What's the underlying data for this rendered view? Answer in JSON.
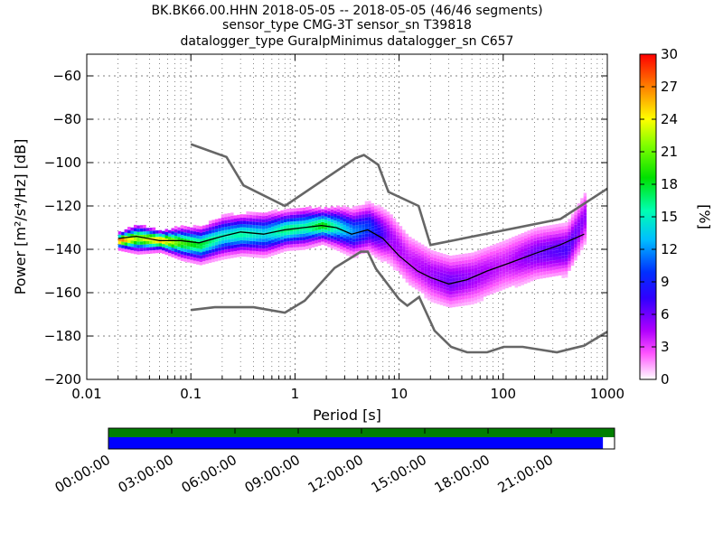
{
  "chart_data": {
    "type": "heatmap",
    "title": [
      "BK.BK66.00.HHN   2018-05-05 -- 2018-05-05  (46/46 segments)",
      "sensor_type CMG-3T sensor_sn T39818",
      "datalogger_type GuralpMinimus datalogger_sn C657"
    ],
    "xlabel": "Period [s]",
    "ylabel": "Power [m²/s⁴/Hz] [dB]",
    "x_scale": "log",
    "xlim": [
      0.01,
      1000
    ],
    "ylim": [
      -200,
      -50
    ],
    "x_ticks": [
      {
        "v": 0.01,
        "label": "0.01"
      },
      {
        "v": 0.1,
        "label": "0.1"
      },
      {
        "v": 1,
        "label": "1"
      },
      {
        "v": 10,
        "label": "10"
      },
      {
        "v": 100,
        "label": "100"
      },
      {
        "v": 1000,
        "label": "1000"
      }
    ],
    "y_ticks": [
      {
        "v": -60,
        "label": "−60"
      },
      {
        "v": -80,
        "label": "−80"
      },
      {
        "v": -100,
        "label": "−100"
      },
      {
        "v": -120,
        "label": "−120"
      },
      {
        "v": -140,
        "label": "−140"
      },
      {
        "v": -160,
        "label": "−160"
      },
      {
        "v": -180,
        "label": "−180"
      },
      {
        "v": -200,
        "label": "−200"
      }
    ],
    "colorbar": {
      "label": "[%]",
      "range": [
        0,
        30
      ],
      "ticks": [
        {
          "v": 0,
          "label": "0"
        },
        {
          "v": 3,
          "label": "3"
        },
        {
          "v": 6,
          "label": "6"
        },
        {
          "v": 9,
          "label": "9"
        },
        {
          "v": 12,
          "label": "12"
        },
        {
          "v": 15,
          "label": "15"
        },
        {
          "v": 18,
          "label": "18"
        },
        {
          "v": 21,
          "label": "21"
        },
        {
          "v": 24,
          "label": "24"
        },
        {
          "v": 27,
          "label": "27"
        },
        {
          "v": 30,
          "label": "30"
        }
      ]
    },
    "noise_models": {
      "high": [
        [
          0.1,
          -91.5
        ],
        [
          0.22,
          -97.4
        ],
        [
          0.32,
          -110.5
        ],
        [
          0.8,
          -120
        ],
        [
          3.8,
          -98
        ],
        [
          4.6,
          -96.5
        ],
        [
          6.3,
          -101
        ],
        [
          7.9,
          -113.5
        ],
        [
          15.4,
          -120
        ],
        [
          20,
          -138
        ],
        [
          354.8,
          -126
        ],
        [
          1000,
          -112
        ]
      ],
      "low": [
        [
          0.1,
          -168
        ],
        [
          0.17,
          -166.7
        ],
        [
          0.4,
          -166.7
        ],
        [
          0.8,
          -169.2
        ],
        [
          1.24,
          -163.7
        ],
        [
          2.4,
          -148.6
        ],
        [
          4.3,
          -141.1
        ],
        [
          5,
          -141.1
        ],
        [
          6,
          -149
        ],
        [
          10,
          -163
        ],
        [
          12,
          -166
        ],
        [
          15.6,
          -162
        ],
        [
          21.9,
          -177.5
        ],
        [
          31.6,
          -185
        ],
        [
          45,
          -187.5
        ],
        [
          70,
          -187.5
        ],
        [
          101,
          -185
        ],
        [
          154,
          -185
        ],
        [
          328,
          -187.5
        ],
        [
          600,
          -184.4
        ],
        [
          1000,
          -178
        ]
      ]
    },
    "median_curve": [
      [
        0.02,
        -135
      ],
      [
        0.03,
        -134
      ],
      [
        0.05,
        -136
      ],
      [
        0.08,
        -136
      ],
      [
        0.12,
        -137
      ],
      [
        0.2,
        -134
      ],
      [
        0.3,
        -132
      ],
      [
        0.5,
        -133
      ],
      [
        0.8,
        -131
      ],
      [
        1.2,
        -130
      ],
      [
        1.8,
        -129
      ],
      [
        2.5,
        -130
      ],
      [
        3.5,
        -133
      ],
      [
        5,
        -131
      ],
      [
        7,
        -135
      ],
      [
        10,
        -143
      ],
      [
        15,
        -150
      ],
      [
        20,
        -153
      ],
      [
        30,
        -156
      ],
      [
        45,
        -154
      ],
      [
        70,
        -150
      ],
      [
        120,
        -146
      ],
      [
        200,
        -142
      ],
      [
        350,
        -138
      ],
      [
        600,
        -133
      ]
    ],
    "density": [
      {
        "x": 0.02,
        "y": -136,
        "pct": 28
      },
      {
        "x": 0.03,
        "y": -135,
        "pct": 22
      },
      {
        "x": 0.05,
        "y": -136,
        "pct": 26
      },
      {
        "x": 0.08,
        "y": -137,
        "pct": 20
      },
      {
        "x": 0.12,
        "y": -138,
        "pct": 18
      },
      {
        "x": 0.2,
        "y": -134,
        "pct": 15
      },
      {
        "x": 0.3,
        "y": -133,
        "pct": 16
      },
      {
        "x": 0.5,
        "y": -133,
        "pct": 14
      },
      {
        "x": 0.8,
        "y": -131,
        "pct": 17
      },
      {
        "x": 1.2,
        "y": -130,
        "pct": 16
      },
      {
        "x": 1.8,
        "y": -129,
        "pct": 19
      },
      {
        "x": 2.5,
        "y": -130,
        "pct": 15
      },
      {
        "x": 3.5,
        "y": -132,
        "pct": 12
      },
      {
        "x": 5,
        "y": -130,
        "pct": 10
      },
      {
        "x": 8,
        "y": -135,
        "pct": 5
      },
      {
        "x": 12,
        "y": -145,
        "pct": 4
      },
      {
        "x": 20,
        "y": -152,
        "pct": 5
      },
      {
        "x": 30,
        "y": -155,
        "pct": 6
      },
      {
        "x": 50,
        "y": -153,
        "pct": 5
      },
      {
        "x": 100,
        "y": -147,
        "pct": 4
      },
      {
        "x": 200,
        "y": -142,
        "pct": 6
      },
      {
        "x": 400,
        "y": -140,
        "pct": 7
      },
      {
        "x": 600,
        "y": -125,
        "pct": 5
      }
    ],
    "timeline": {
      "labels": [
        "00:00:00",
        "03:00:00",
        "06:00:00",
        "09:00:00",
        "12:00:00",
        "15:00:00",
        "18:00:00",
        "21:00:00"
      ],
      "top_color": "#007f00",
      "bottom_color": "#0000ff",
      "bottom_coverage": 0.977
    },
    "grid": true
  }
}
